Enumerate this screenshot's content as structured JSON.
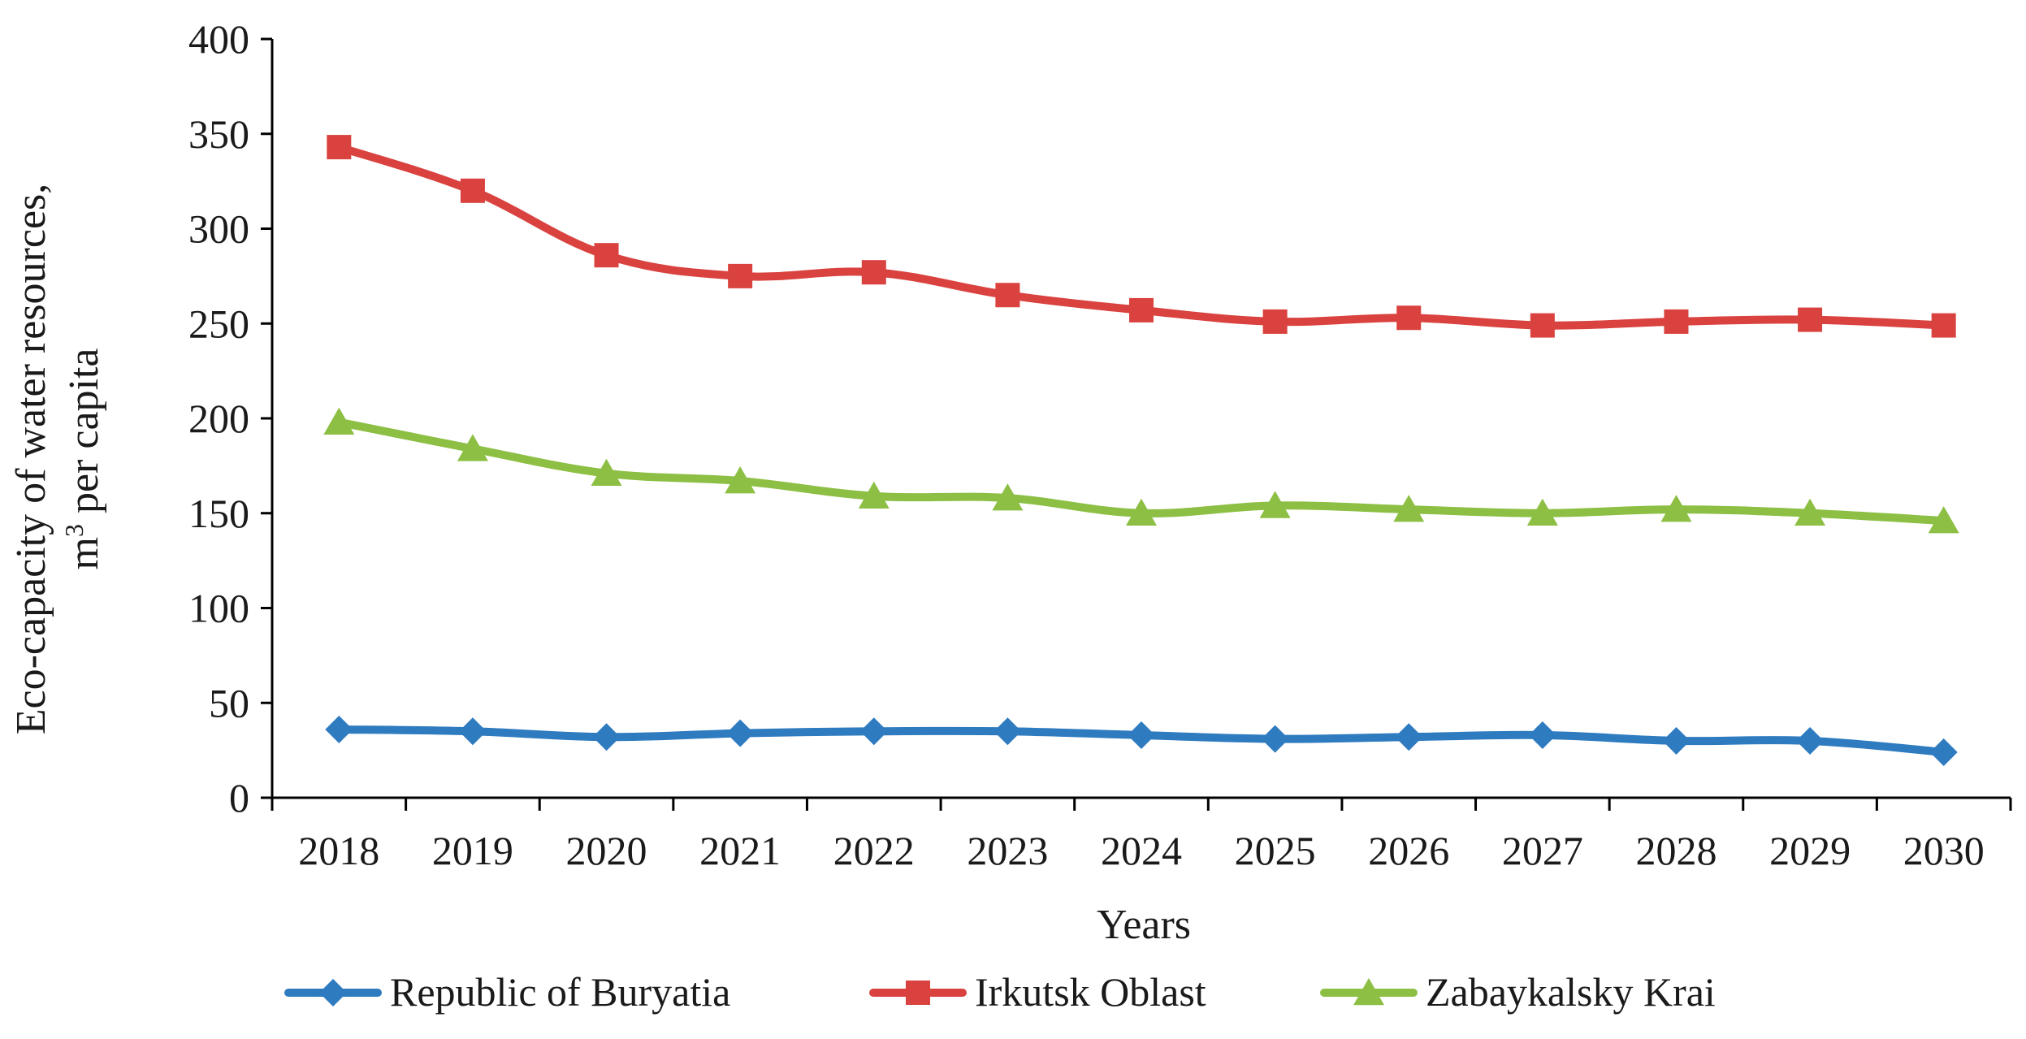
{
  "chart_data": {
    "type": "line",
    "xlabel": "Years",
    "ylabel_line1": "Eco-capacity of water resources,",
    "ylabel_line2_prefix": "m",
    "ylabel_line2_sup": "3",
    "ylabel_line2_suffix": " per capita",
    "ylim": [
      0,
      400
    ],
    "yticks": [
      0,
      50,
      100,
      150,
      200,
      250,
      300,
      350,
      400
    ],
    "grid": false,
    "legend_position": "bottom",
    "x": [
      "2018",
      "2019",
      "2020",
      "2021",
      "2022",
      "2023",
      "2024",
      "2025",
      "2026",
      "2027",
      "2028",
      "2029",
      "2030"
    ],
    "series": [
      {
        "name": "Republic of Buryatia",
        "color": "#2e7bc0",
        "marker": "diamond",
        "values": [
          36,
          35,
          32,
          34,
          35,
          35,
          33,
          31,
          32,
          33,
          30,
          30,
          24
        ]
      },
      {
        "name": "Irkutsk Oblast",
        "color": "#d9423f",
        "marker": "square",
        "values": [
          343,
          320,
          286,
          275,
          277,
          265,
          257,
          251,
          253,
          249,
          251,
          252,
          249
        ]
      },
      {
        "name": "Zabaykalsky Krai",
        "color": "#8cbf44",
        "marker": "triangle",
        "values": [
          198,
          184,
          171,
          167,
          159,
          158,
          150,
          154,
          152,
          150,
          152,
          150,
          146
        ]
      }
    ]
  }
}
